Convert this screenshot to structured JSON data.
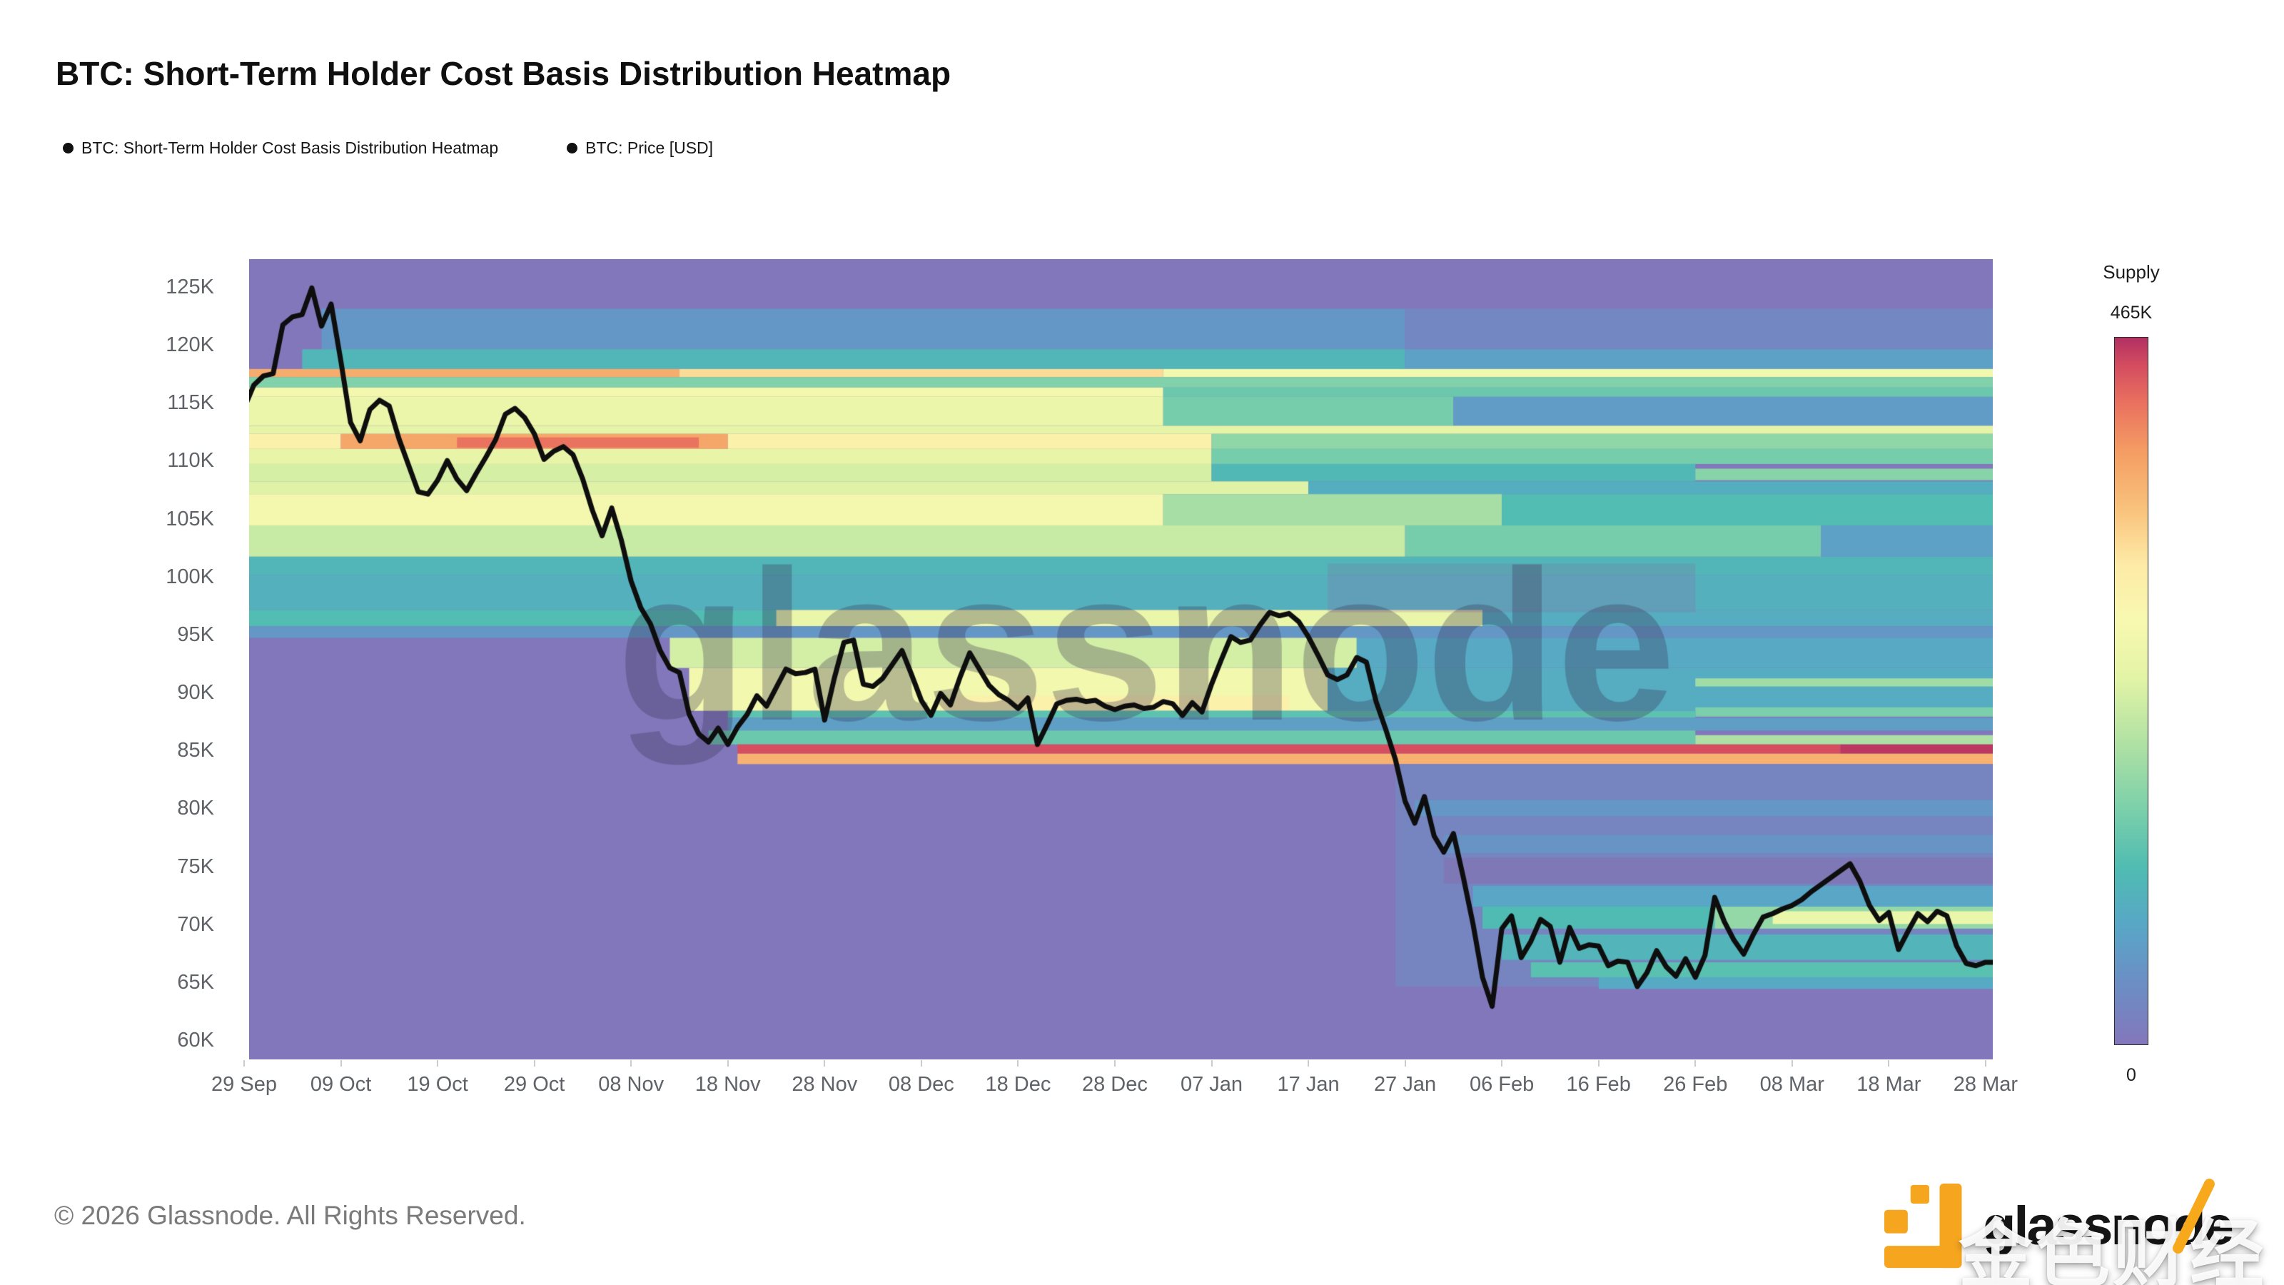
{
  "page": {
    "title": "BTC: Short-Term Holder Cost Basis Distribution Heatmap",
    "footer": "© 2026 Glassnode. All Rights Reserved."
  },
  "legend": {
    "items": [
      {
        "label": "BTC: Short-Term Holder Cost Basis Distribution Heatmap",
        "marker_color": "#111111"
      },
      {
        "label": "BTC: Price [USD]",
        "marker_color": "#111111"
      }
    ]
  },
  "branding": {
    "logo_text": "glassnode",
    "logo_icon_color": "#F6A51E",
    "overlay_watermark": "金色财经",
    "chart_watermark": "glassnode"
  },
  "chart_data": {
    "type": "heatmap",
    "title": "BTC: Short-Term Holder Cost Basis Distribution Heatmap",
    "x_axis": {
      "tick_interval_days": 10,
      "tick_labels": [
        "29 Sep",
        "09 Oct",
        "19 Oct",
        "29 Oct",
        "08 Nov",
        "18 Nov",
        "28 Nov",
        "08 Dec",
        "18 Dec",
        "28 Dec",
        "07 Jan",
        "17 Jan",
        "27 Jan",
        "06 Feb",
        "16 Feb",
        "26 Feb",
        "08 Mar",
        "18 Mar",
        "28 Mar"
      ]
    },
    "y_axis": {
      "unit": "USD",
      "tick_labels": [
        "125K",
        "120K",
        "115K",
        "110K",
        "105K",
        "100K",
        "95K",
        "90K",
        "85K",
        "80K",
        "75K",
        "70K",
        "65K",
        "60K"
      ],
      "tick_values_k": [
        125,
        120,
        115,
        110,
        105,
        100,
        95,
        90,
        85,
        80,
        75,
        70,
        65,
        60
      ],
      "visible_range_k": [
        58.3,
        127.3
      ]
    },
    "colorbar": {
      "title": "Supply",
      "max_label": "465K",
      "min_label": "0",
      "max_value_k": 465,
      "gradient_stops": [
        {
          "t": 0.0,
          "color": "#8377bb"
        },
        {
          "t": 0.09,
          "color": "#6b8fc5"
        },
        {
          "t": 0.17,
          "color": "#58a7c6"
        },
        {
          "t": 0.25,
          "color": "#50bcb2"
        },
        {
          "t": 0.34,
          "color": "#7fd1aa"
        },
        {
          "t": 0.43,
          "color": "#b2e2a3"
        },
        {
          "t": 0.52,
          "color": "#e3f4a6"
        },
        {
          "t": 0.6,
          "color": "#f8f9b1"
        },
        {
          "t": 0.68,
          "color": "#fdeaa6"
        },
        {
          "t": 0.76,
          "color": "#f9c17b"
        },
        {
          "t": 0.84,
          "color": "#f49c63"
        },
        {
          "t": 0.91,
          "color": "#e96f5f"
        },
        {
          "t": 0.96,
          "color": "#d44d60"
        },
        {
          "t": 1.0,
          "color": "#b23062"
        }
      ]
    },
    "price_line": {
      "name": "BTC: Price [USD]",
      "color": "#0e0e0e",
      "unit": "K USD, day 0 = 29 Sep",
      "points_day_priceK": [
        [
          0,
          114.4
        ],
        [
          1,
          116.4
        ],
        [
          2,
          117.2
        ],
        [
          3,
          117.4
        ],
        [
          4,
          121.6
        ],
        [
          5,
          122.3
        ],
        [
          6,
          122.5
        ],
        [
          7,
          124.8
        ],
        [
          8,
          121.5
        ],
        [
          9,
          123.4
        ],
        [
          10,
          118.5
        ],
        [
          11,
          113.2
        ],
        [
          12,
          111.6
        ],
        [
          13,
          114.3
        ],
        [
          14,
          115.1
        ],
        [
          15,
          114.6
        ],
        [
          16,
          111.8
        ],
        [
          17,
          109.5
        ],
        [
          18,
          107.2
        ],
        [
          19,
          107.0
        ],
        [
          20,
          108.2
        ],
        [
          21,
          109.9
        ],
        [
          22,
          108.3
        ],
        [
          23,
          107.3
        ],
        [
          24,
          108.8
        ],
        [
          25,
          110.2
        ],
        [
          26,
          111.7
        ],
        [
          27,
          113.9
        ],
        [
          28,
          114.4
        ],
        [
          29,
          113.6
        ],
        [
          30,
          112.2
        ],
        [
          31,
          110.0
        ],
        [
          32,
          110.7
        ],
        [
          33,
          111.1
        ],
        [
          34,
          110.4
        ],
        [
          35,
          108.3
        ],
        [
          36,
          105.6
        ],
        [
          37,
          103.4
        ],
        [
          38,
          105.8
        ],
        [
          39,
          103.0
        ],
        [
          40,
          99.5
        ],
        [
          41,
          97.2
        ],
        [
          42,
          95.8
        ],
        [
          43,
          93.5
        ],
        [
          44,
          92.0
        ],
        [
          45,
          91.6
        ],
        [
          46,
          88.0
        ],
        [
          47,
          86.3
        ],
        [
          48,
          85.6
        ],
        [
          49,
          86.8
        ],
        [
          50,
          85.4
        ],
        [
          51,
          86.9
        ],
        [
          52,
          88.0
        ],
        [
          53,
          89.6
        ],
        [
          54,
          88.7
        ],
        [
          55,
          90.3
        ],
        [
          56,
          91.9
        ],
        [
          57,
          91.5
        ],
        [
          58,
          91.6
        ],
        [
          59,
          91.9
        ],
        [
          60,
          87.5
        ],
        [
          61,
          91.1
        ],
        [
          62,
          94.2
        ],
        [
          63,
          94.4
        ],
        [
          64,
          90.6
        ],
        [
          65,
          90.4
        ],
        [
          66,
          91.1
        ],
        [
          67,
          92.3
        ],
        [
          68,
          93.5
        ],
        [
          69,
          91.4
        ],
        [
          70,
          89.2
        ],
        [
          71,
          87.9
        ],
        [
          72,
          89.8
        ],
        [
          73,
          88.8
        ],
        [
          74,
          91.2
        ],
        [
          75,
          93.3
        ],
        [
          76,
          91.9
        ],
        [
          77,
          90.5
        ],
        [
          78,
          89.7
        ],
        [
          79,
          89.2
        ],
        [
          80,
          88.5
        ],
        [
          81,
          89.4
        ],
        [
          82,
          85.4
        ],
        [
          83,
          87.1
        ],
        [
          84,
          88.9
        ],
        [
          85,
          89.2
        ],
        [
          86,
          89.3
        ],
        [
          87,
          89.1
        ],
        [
          88,
          89.2
        ],
        [
          89,
          88.7
        ],
        [
          90,
          88.4
        ],
        [
          91,
          88.7
        ],
        [
          92,
          88.8
        ],
        [
          93,
          88.5
        ],
        [
          94,
          88.6
        ],
        [
          95,
          89.1
        ],
        [
          96,
          88.9
        ],
        [
          97,
          87.9
        ],
        [
          98,
          89.0
        ],
        [
          99,
          88.2
        ],
        [
          100,
          90.6
        ],
        [
          101,
          92.7
        ],
        [
          102,
          94.7
        ],
        [
          103,
          94.2
        ],
        [
          104,
          94.4
        ],
        [
          105,
          95.7
        ],
        [
          106,
          96.8
        ],
        [
          107,
          96.5
        ],
        [
          108,
          96.7
        ],
        [
          109,
          96.0
        ],
        [
          110,
          94.7
        ],
        [
          111,
          93.1
        ],
        [
          112,
          91.4
        ],
        [
          113,
          91.0
        ],
        [
          114,
          91.4
        ],
        [
          115,
          92.9
        ],
        [
          116,
          92.5
        ],
        [
          117,
          89.1
        ],
        [
          118,
          86.7
        ],
        [
          119,
          84.1
        ],
        [
          120,
          80.5
        ],
        [
          121,
          78.6
        ],
        [
          122,
          80.9
        ],
        [
          123,
          77.5
        ],
        [
          124,
          76.1
        ],
        [
          125,
          77.7
        ],
        [
          126,
          74.0
        ],
        [
          127,
          70.0
        ],
        [
          128,
          65.3
        ],
        [
          129,
          62.8
        ],
        [
          130,
          69.5
        ],
        [
          131,
          70.6
        ],
        [
          132,
          67.0
        ],
        [
          133,
          68.4
        ],
        [
          134,
          70.3
        ],
        [
          135,
          69.7
        ],
        [
          136,
          66.6
        ],
        [
          137,
          69.6
        ],
        [
          138,
          67.8
        ],
        [
          139,
          68.1
        ],
        [
          140,
          68.0
        ],
        [
          141,
          66.3
        ],
        [
          142,
          66.7
        ],
        [
          143,
          66.6
        ],
        [
          144,
          64.5
        ],
        [
          145,
          65.7
        ],
        [
          146,
          67.6
        ],
        [
          147,
          66.2
        ],
        [
          148,
          65.4
        ],
        [
          149,
          66.9
        ],
        [
          150,
          65.3
        ],
        [
          151,
          67.2
        ],
        [
          152,
          72.2
        ],
        [
          153,
          70.1
        ],
        [
          154,
          68.5
        ],
        [
          155,
          67.3
        ],
        [
          156,
          69.0
        ],
        [
          157,
          70.5
        ],
        [
          158,
          70.8
        ],
        [
          159,
          71.2
        ],
        [
          160,
          71.5
        ],
        [
          161,
          72.0
        ],
        [
          162,
          72.7
        ],
        [
          163,
          73.3
        ],
        [
          164,
          73.9
        ],
        [
          165,
          74.5
        ],
        [
          166,
          75.1
        ],
        [
          167,
          73.6
        ],
        [
          168,
          71.5
        ],
        [
          169,
          70.2
        ],
        [
          170,
          70.9
        ],
        [
          171,
          67.7
        ],
        [
          172,
          69.3
        ],
        [
          173,
          70.8
        ],
        [
          174,
          70.1
        ],
        [
          175,
          71.0
        ],
        [
          176,
          70.6
        ],
        [
          177,
          68.0
        ],
        [
          178,
          66.5
        ],
        [
          179,
          66.3
        ],
        [
          180,
          66.6
        ],
        [
          181,
          66.6
        ]
      ]
    },
    "heatmap_bands_format": "[priceLowK, priceHighK, dayStart, dayEnd, supplyK]",
    "heatmap_bands": [
      [
        119.5,
        123.0,
        8,
        120,
        55
      ],
      [
        119.5,
        123.0,
        120,
        181,
        28
      ],
      [
        117.8,
        119.5,
        6,
        120,
        105
      ],
      [
        117.8,
        119.5,
        120,
        181,
        70
      ],
      [
        117.1,
        117.8,
        0,
        45,
        375
      ],
      [
        117.1,
        117.8,
        45,
        95,
        330
      ],
      [
        117.1,
        117.8,
        95,
        181,
        268
      ],
      [
        116.2,
        117.1,
        0,
        181,
        160
      ],
      [
        115.4,
        116.2,
        0,
        95,
        270
      ],
      [
        115.4,
        116.2,
        95,
        181,
        140
      ],
      [
        112.9,
        115.4,
        0,
        95,
        258
      ],
      [
        112.9,
        115.4,
        95,
        125,
        150
      ],
      [
        112.9,
        115.4,
        125,
        181,
        62
      ],
      [
        112.2,
        112.9,
        0,
        181,
        245
      ],
      [
        110.9,
        112.2,
        0,
        10,
        300
      ],
      [
        110.9,
        112.2,
        10,
        50,
        380
      ],
      [
        111.0,
        111.9,
        22,
        47,
        420
      ],
      [
        110.9,
        112.2,
        50,
        100,
        300
      ],
      [
        110.9,
        112.2,
        100,
        181,
        172
      ],
      [
        109.6,
        110.9,
        0,
        100,
        250
      ],
      [
        109.6,
        110.9,
        100,
        181,
        150
      ],
      [
        108.1,
        109.6,
        0,
        100,
        230
      ],
      [
        108.1,
        109.6,
        100,
        150,
        110
      ],
      [
        108.2,
        109.2,
        150,
        181,
        165
      ],
      [
        107.0,
        108.1,
        0,
        110,
        238
      ],
      [
        107.0,
        108.1,
        110,
        181,
        92
      ],
      [
        104.3,
        107.0,
        0,
        95,
        272
      ],
      [
        104.3,
        107.0,
        95,
        130,
        190
      ],
      [
        104.3,
        107.0,
        130,
        181,
        118
      ],
      [
        101.6,
        104.3,
        0,
        120,
        218
      ],
      [
        101.6,
        104.3,
        120,
        163,
        150
      ],
      [
        101.6,
        104.3,
        163,
        181,
        70
      ],
      [
        100.0,
        101.6,
        0,
        181,
        105
      ],
      [
        97.0,
        100.0,
        0,
        181,
        95
      ],
      [
        95.6,
        97.0,
        0,
        55,
        118
      ],
      [
        95.6,
        97.0,
        55,
        128,
        255
      ],
      [
        95.6,
        97.0,
        128,
        181,
        90
      ],
      [
        94.6,
        95.6,
        0,
        181,
        55
      ],
      [
        92.0,
        94.6,
        44,
        115,
        228
      ],
      [
        92.0,
        94.6,
        115,
        181,
        82
      ],
      [
        88.3,
        92.0,
        46,
        112,
        268
      ],
      [
        88.4,
        89.6,
        72,
        108,
        298
      ],
      [
        88.3,
        92.0,
        112,
        181,
        88
      ],
      [
        90.4,
        91.1,
        150,
        181,
        185
      ],
      [
        87.8,
        88.6,
        150,
        181,
        155
      ],
      [
        87.7,
        88.3,
        50,
        150,
        128
      ],
      [
        86.6,
        87.7,
        50,
        181,
        66
      ],
      [
        85.4,
        86.6,
        48,
        150,
        140
      ],
      [
        85.4,
        86.2,
        150,
        181,
        195
      ],
      [
        84.6,
        85.4,
        51,
        165,
        445
      ],
      [
        84.6,
        85.4,
        165,
        181,
        460
      ],
      [
        83.7,
        84.6,
        51,
        181,
        368
      ],
      [
        64.5,
        83.7,
        119,
        181,
        22
      ],
      [
        79.2,
        80.6,
        121,
        181,
        55
      ],
      [
        76.0,
        77.6,
        124,
        181,
        48
      ],
      [
        71.4,
        73.2,
        127,
        181,
        78
      ],
      [
        69.5,
        71.4,
        128,
        152,
        115
      ],
      [
        69.5,
        71.4,
        152,
        181,
        175
      ],
      [
        69.9,
        71.0,
        158,
        181,
        255
      ],
      [
        66.8,
        69.0,
        130,
        181,
        102
      ],
      [
        65.3,
        66.6,
        133,
        181,
        125
      ],
      [
        64.3,
        65.3,
        140,
        181,
        85
      ]
    ],
    "overlay_tints": [
      {
        "p0": 73.4,
        "p1": 75.6,
        "d0": 124,
        "d1": 181,
        "color": "rgba(146,98,164,0.35)"
      },
      {
        "p0": 96.8,
        "p1": 101.0,
        "d0": 112,
        "d1": 150,
        "color": "rgba(141,95,160,0.20)"
      }
    ]
  }
}
